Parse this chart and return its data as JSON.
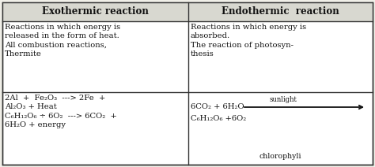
{
  "col1_header": "Exothermic reaction",
  "col2_header": "Endothermic  reaction",
  "col1_desc": "Reactions in which energy is\nreleased in the form of heat.\nAll combustion reactions,\nThermite",
  "col2_desc": "Reactions in which energy is\nabsorbed.\nThe reaction of photosyn-\nthesis",
  "col1_example_lines": [
    "2Al  +  Fe₂O₃  ---> 2Fe  +",
    "Al₂O₃ + Heat",
    "C₆H₁₂O₆ ÷ 6O₂  ---> 6CO₂  +",
    "6H₂O + energy"
  ],
  "col2_example_sunlight": "sunlight",
  "col2_example_line1": "6CO₂ + 6H₂O",
  "col2_example_line2": "C₆H₁₂O₆ +6O₂",
  "col2_example_chloro": "chlorophyli",
  "bg_color": "#f0efe8",
  "header_bg": "#d8d8d0",
  "border_color": "#333333",
  "text_color": "#111111",
  "font_size": 7.2,
  "header_font_size": 8.5
}
